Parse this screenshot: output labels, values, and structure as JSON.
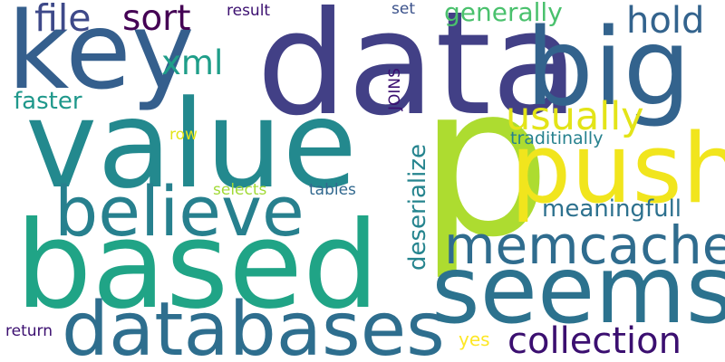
{
  "words": [
    {
      "text": "data",
      "color": "#424086",
      "orientation": "horizontal"
    },
    {
      "text": "p",
      "color": "#addc30",
      "orientation": "horizontal"
    },
    {
      "text": "value",
      "color": "#23898e",
      "orientation": "horizontal"
    },
    {
      "text": "based",
      "color": "#20a486",
      "orientation": "horizontal"
    },
    {
      "text": "key",
      "color": "#355f8d",
      "orientation": "horizontal"
    },
    {
      "text": "big",
      "color": "#33638d",
      "orientation": "horizontal"
    },
    {
      "text": "seems",
      "color": "#2c728e",
      "orientation": "horizontal"
    },
    {
      "text": "push",
      "color": "#f1e51d",
      "orientation": "horizontal"
    },
    {
      "text": "databases",
      "color": "#2e6e8e",
      "orientation": "horizontal"
    },
    {
      "text": "believe",
      "color": "#27808e",
      "orientation": "horizontal"
    },
    {
      "text": "memcache",
      "color": "#2f6c8e",
      "orientation": "horizontal"
    },
    {
      "text": "usually",
      "color": "#e3e418",
      "orientation": "horizontal"
    },
    {
      "text": "collection",
      "color": "#3b0f70",
      "orientation": "horizontal"
    },
    {
      "text": "file",
      "color": "#3e4989",
      "orientation": "horizontal"
    },
    {
      "text": "sort",
      "color": "#440154",
      "orientation": "horizontal"
    },
    {
      "text": "hold",
      "color": "#33638d",
      "orientation": "horizontal"
    },
    {
      "text": "xml",
      "color": "#1f9e89",
      "orientation": "horizontal"
    },
    {
      "text": "generally",
      "color": "#4ac16d",
      "orientation": "horizontal"
    },
    {
      "text": "deserialize",
      "color": "#25848e",
      "orientation": "vertical"
    },
    {
      "text": "meaningfull",
      "color": "#2d718e",
      "orientation": "horizontal"
    },
    {
      "text": "faster",
      "color": "#1f988b",
      "orientation": "horizontal"
    },
    {
      "text": "traditinally",
      "color": "#26818e",
      "orientation": "horizontal"
    },
    {
      "text": "JOINS",
      "color": "#3b0f70",
      "orientation": "vertical"
    },
    {
      "text": "result",
      "color": "#3b0f70",
      "orientation": "horizontal"
    },
    {
      "text": "set",
      "color": "#3b528b",
      "orientation": "horizontal"
    },
    {
      "text": "row",
      "color": "#e3e418",
      "orientation": "horizontal"
    },
    {
      "text": "selects",
      "color": "#a2da37",
      "orientation": "horizontal"
    },
    {
      "text": "tables",
      "color": "#31688e",
      "orientation": "horizontal"
    },
    {
      "text": "return",
      "color": "#3b0f70",
      "orientation": "horizontal"
    },
    {
      "text": "yes",
      "color": "#fde725",
      "orientation": "horizontal"
    }
  ]
}
